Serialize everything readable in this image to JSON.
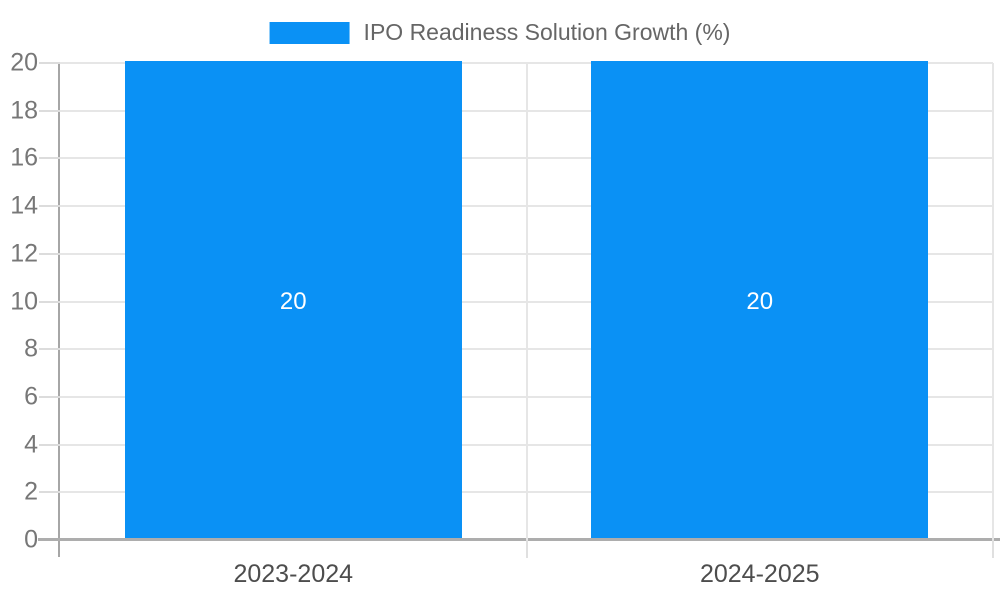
{
  "legend": {
    "label": "IPO Readiness Solution Growth (%)"
  },
  "colors": {
    "bar": "#0a91f5",
    "grid": "#e6e6e6",
    "axis_line": "#a6a6a6",
    "baseline": "#adadad",
    "y_tick_text": "#777777",
    "x_tick_text": "#4d4d4d",
    "legend_text": "#666666",
    "data_label_text": "#ffffff",
    "background": "#ffffff"
  },
  "chart_data": {
    "type": "bar",
    "categories": [
      "2023-2024",
      "2024-2025"
    ],
    "series": [
      {
        "name": "IPO Readiness Solution Growth (%)",
        "color": "#0a91f5",
        "values": [
          20,
          20
        ]
      }
    ],
    "data_labels": [
      "20",
      "20"
    ],
    "title": "",
    "xlabel": "",
    "ylabel": "",
    "ylim": [
      0,
      20
    ],
    "ytick_step": 2,
    "grid": true,
    "legend_position": "top",
    "bar_width_fraction": 0.722
  }
}
